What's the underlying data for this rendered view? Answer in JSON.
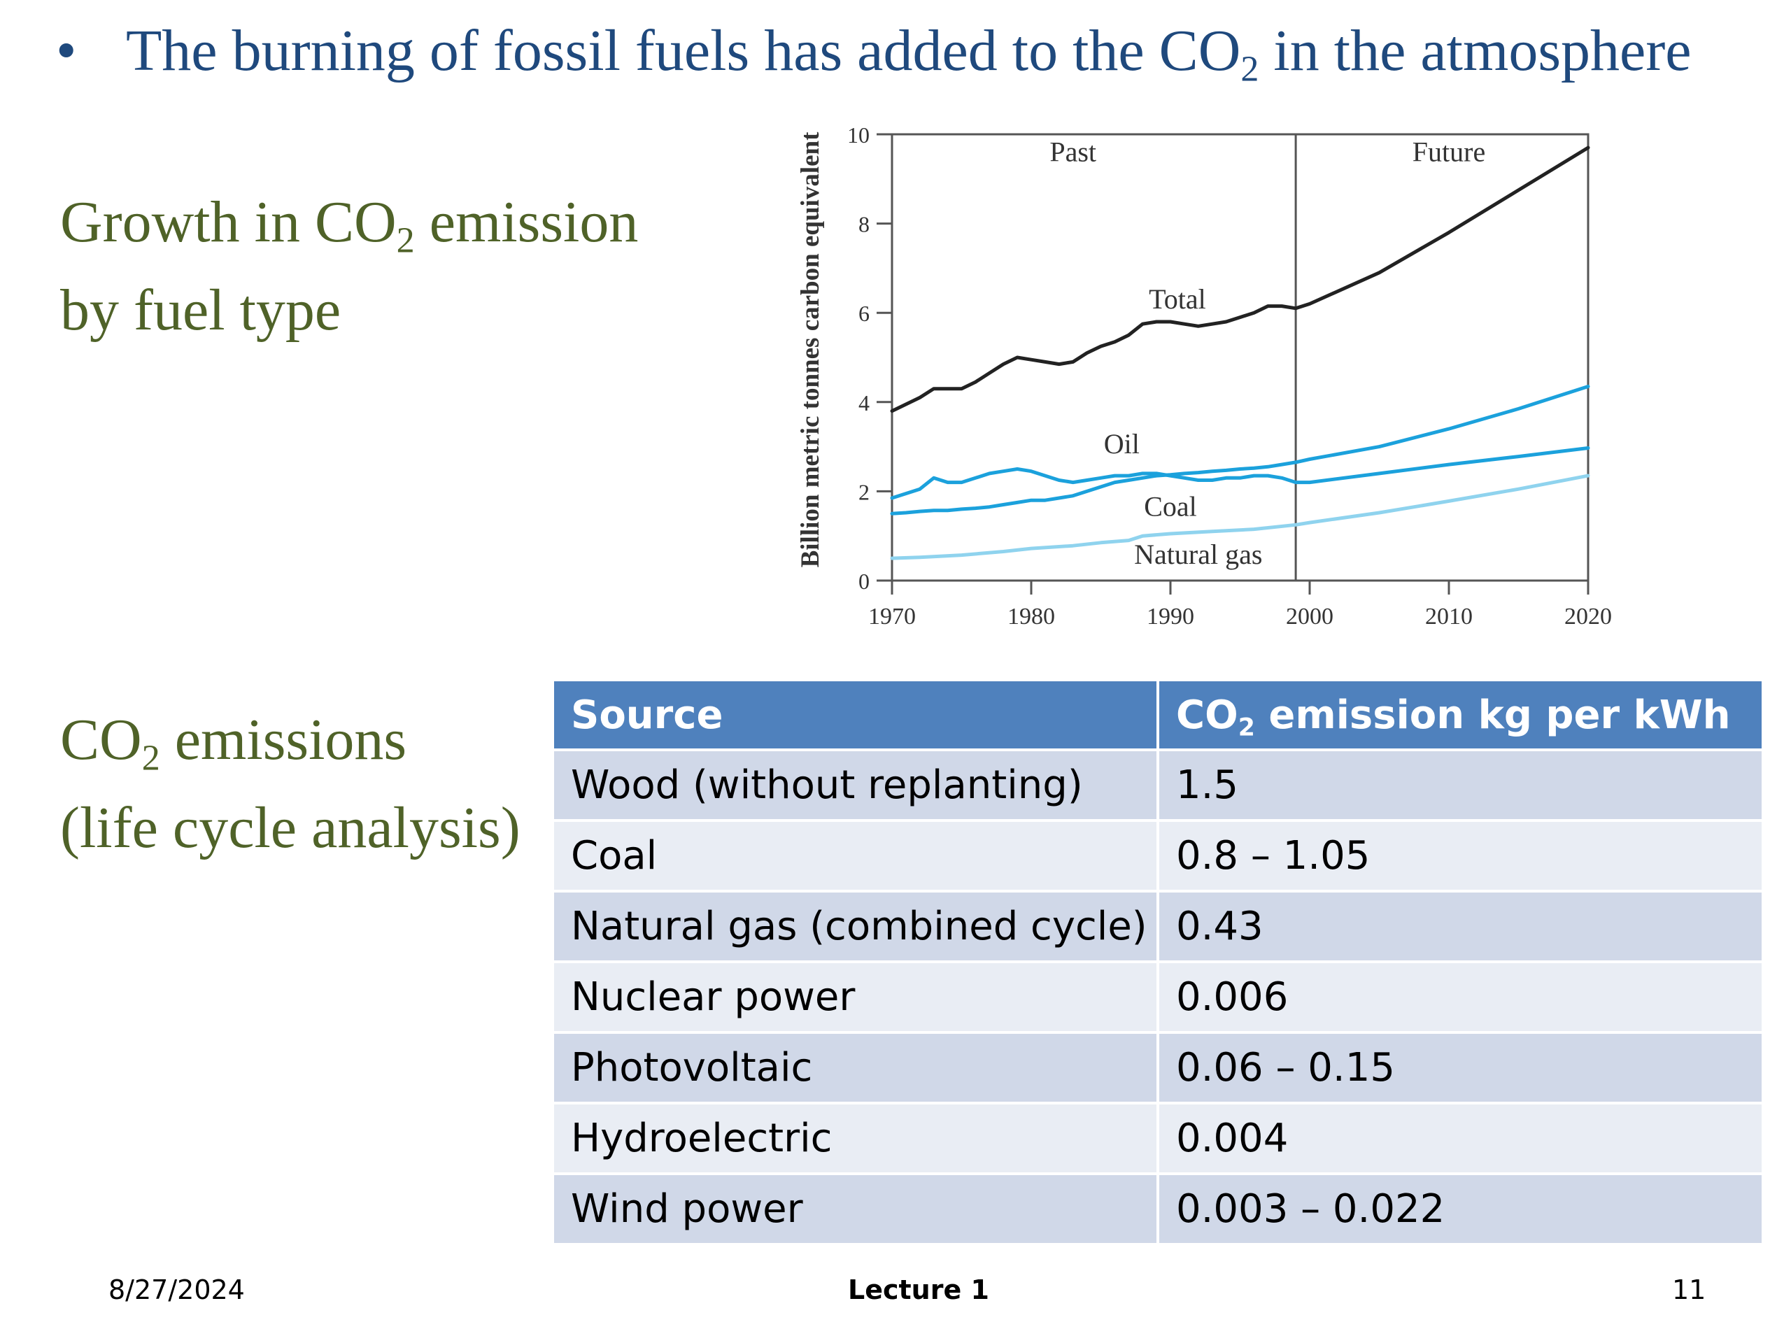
{
  "slide": {
    "bullet": "•",
    "title_pre": "The burning of fossil fuels has added to the CO",
    "title_sub": "2",
    "title_post": " in the atmosphere",
    "growth_heading": {
      "pre": "Growth in CO",
      "sub": "2",
      "post": " emission",
      "line2": "by fuel type"
    },
    "lca_heading": {
      "pre": "CO",
      "sub": "2",
      "post": " emissions",
      "line2": "(life cycle analysis)"
    }
  },
  "chart_data": {
    "type": "line",
    "title": "",
    "xlabel": "",
    "ylabel": "Billion metric tonnes carbon equivalent",
    "xlim": [
      1970,
      2020
    ],
    "ylim": [
      0,
      10
    ],
    "x_ticks": [
      1970,
      1980,
      1990,
      2000,
      2010,
      2020
    ],
    "y_ticks": [
      0,
      2,
      4,
      6,
      8,
      10
    ],
    "grid": false,
    "divider_x": 1999,
    "region_labels": [
      "Past",
      "Future"
    ],
    "series": [
      {
        "name": "Total",
        "color": "#222222",
        "points": [
          [
            1970,
            3.8
          ],
          [
            1971,
            3.95
          ],
          [
            1972,
            4.1
          ],
          [
            1973,
            4.3
          ],
          [
            1974,
            4.3
          ],
          [
            1975,
            4.3
          ],
          [
            1976,
            4.45
          ],
          [
            1977,
            4.65
          ],
          [
            1978,
            4.85
          ],
          [
            1979,
            5.0
          ],
          [
            1980,
            4.95
          ],
          [
            1981,
            4.9
          ],
          [
            1982,
            4.85
          ],
          [
            1983,
            4.9
          ],
          [
            1984,
            5.1
          ],
          [
            1985,
            5.25
          ],
          [
            1986,
            5.35
          ],
          [
            1987,
            5.5
          ],
          [
            1988,
            5.75
          ],
          [
            1989,
            5.8
          ],
          [
            1990,
            5.8
          ],
          [
            1991,
            5.75
          ],
          [
            1992,
            5.7
          ],
          [
            1993,
            5.75
          ],
          [
            1994,
            5.8
          ],
          [
            1995,
            5.9
          ],
          [
            1996,
            6.0
          ],
          [
            1997,
            6.15
          ],
          [
            1998,
            6.15
          ],
          [
            1999,
            6.1
          ],
          [
            2000,
            6.2
          ],
          [
            2005,
            6.9
          ],
          [
            2010,
            7.8
          ],
          [
            2015,
            8.75
          ],
          [
            2020,
            9.7
          ]
        ]
      },
      {
        "name": "Oil",
        "color": "#1ba1dc",
        "points": [
          [
            1970,
            1.85
          ],
          [
            1971,
            1.95
          ],
          [
            1972,
            2.05
          ],
          [
            1973,
            2.3
          ],
          [
            1974,
            2.2
          ],
          [
            1975,
            2.2
          ],
          [
            1976,
            2.3
          ],
          [
            1977,
            2.4
          ],
          [
            1978,
            2.45
          ],
          [
            1979,
            2.5
          ],
          [
            1980,
            2.45
          ],
          [
            1981,
            2.35
          ],
          [
            1982,
            2.25
          ],
          [
            1983,
            2.2
          ],
          [
            1984,
            2.25
          ],
          [
            1985,
            2.3
          ],
          [
            1986,
            2.35
          ],
          [
            1987,
            2.35
          ],
          [
            1988,
            2.4
          ],
          [
            1989,
            2.4
          ],
          [
            1990,
            2.35
          ],
          [
            1991,
            2.3
          ],
          [
            1992,
            2.25
          ],
          [
            1993,
            2.25
          ],
          [
            1994,
            2.3
          ],
          [
            1995,
            2.3
          ],
          [
            1996,
            2.35
          ],
          [
            1997,
            2.35
          ],
          [
            1998,
            2.3
          ],
          [
            1999,
            2.2
          ],
          [
            2000,
            2.2
          ],
          [
            2005,
            2.4
          ],
          [
            2010,
            2.6
          ],
          [
            2015,
            2.78
          ],
          [
            2020,
            2.97
          ]
        ]
      },
      {
        "name": "Coal",
        "color": "#1ba1dc",
        "points": [
          [
            1970,
            1.5
          ],
          [
            1971,
            1.52
          ],
          [
            1972,
            1.55
          ],
          [
            1973,
            1.57
          ],
          [
            1974,
            1.57
          ],
          [
            1975,
            1.6
          ],
          [
            1976,
            1.62
          ],
          [
            1977,
            1.65
          ],
          [
            1978,
            1.7
          ],
          [
            1979,
            1.75
          ],
          [
            1980,
            1.8
          ],
          [
            1981,
            1.8
          ],
          [
            1982,
            1.85
          ],
          [
            1983,
            1.9
          ],
          [
            1984,
            2.0
          ],
          [
            1985,
            2.1
          ],
          [
            1986,
            2.2
          ],
          [
            1987,
            2.25
          ],
          [
            1988,
            2.3
          ],
          [
            1989,
            2.35
          ],
          [
            1990,
            2.37
          ],
          [
            1991,
            2.4
          ],
          [
            1992,
            2.42
          ],
          [
            1993,
            2.45
          ],
          [
            1994,
            2.47
          ],
          [
            1995,
            2.5
          ],
          [
            1996,
            2.52
          ],
          [
            1997,
            2.55
          ],
          [
            1998,
            2.6
          ],
          [
            1999,
            2.65
          ],
          [
            2000,
            2.72
          ],
          [
            2005,
            3.0
          ],
          [
            2010,
            3.4
          ],
          [
            2015,
            3.85
          ],
          [
            2020,
            4.35
          ]
        ]
      },
      {
        "name": "Natural gas",
        "color": "#8fd3ee",
        "points": [
          [
            1970,
            0.5
          ],
          [
            1972,
            0.52
          ],
          [
            1975,
            0.57
          ],
          [
            1978,
            0.65
          ],
          [
            1980,
            0.72
          ],
          [
            1983,
            0.78
          ],
          [
            1985,
            0.85
          ],
          [
            1987,
            0.9
          ],
          [
            1988,
            1.0
          ],
          [
            1990,
            1.05
          ],
          [
            1993,
            1.1
          ],
          [
            1996,
            1.15
          ],
          [
            1999,
            1.25
          ],
          [
            2000,
            1.3
          ],
          [
            2005,
            1.52
          ],
          [
            2010,
            1.78
          ],
          [
            2015,
            2.05
          ],
          [
            2020,
            2.35
          ]
        ]
      }
    ],
    "annotations": [
      "Past",
      "Future",
      "Total",
      "Oil",
      "Coal",
      "Natural gas"
    ]
  },
  "chart_labels": {
    "past": "Past",
    "future": "Future",
    "total": "Total",
    "oil": "Oil",
    "coal": "Coal",
    "natural_gas": "Natural gas",
    "ylabel": "Billion metric tonnes carbon equivalent",
    "x_ticks": [
      "1970",
      "1980",
      "1990",
      "2000",
      "2010",
      "2020"
    ],
    "y_ticks": [
      "0",
      "2",
      "4",
      "6",
      "8",
      "10"
    ]
  },
  "table": {
    "header": {
      "source": "Source",
      "emission_pre": "CO",
      "emission_sub": "2",
      "emission_post": " emission kg per  kWh"
    },
    "rows": [
      {
        "source": "Wood (without replanting)",
        "value": "1.5"
      },
      {
        "source": "Coal",
        "value": "0.8 – 1.05"
      },
      {
        "source": "Natural gas (combined cycle)",
        "value": "0.43"
      },
      {
        "source": "Nuclear power",
        "value": "0.006"
      },
      {
        "source": "Photovoltaic",
        "value": "0.06 – 0.15"
      },
      {
        "source": "Hydroelectric",
        "value": "0.004"
      },
      {
        "source": "Wind power",
        "value": "0.003 – 0.022"
      }
    ]
  },
  "footer": {
    "date": "8/27/2024",
    "center": "Lecture 1",
    "page": "11"
  }
}
